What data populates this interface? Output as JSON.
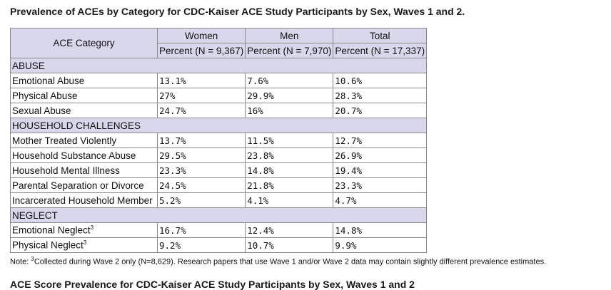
{
  "title": "Prevalence of ACEs by Category for CDC-Kaiser ACE Study Participants by Sex, Waves 1 and 2.",
  "table": {
    "category_header": "ACE Category",
    "groups": [
      {
        "name": "Women",
        "sub": "Percent (N = 9,367)"
      },
      {
        "name": "Men",
        "sub": "Percent (N = 7,970)"
      },
      {
        "name": "Total",
        "sub": "Percent (N = 17,337)"
      }
    ],
    "sections": [
      {
        "name": "ABUSE",
        "rows": [
          {
            "label": "Emotional Abuse",
            "sup": "",
            "values": [
              "13.1%",
              "7.6%",
              "10.6%"
            ]
          },
          {
            "label": "Physical Abuse",
            "sup": "",
            "values": [
              "27%",
              "29.9%",
              "28.3%"
            ]
          },
          {
            "label": "Sexual Abuse",
            "sup": "",
            "values": [
              "24.7%",
              "16%",
              "20.7%"
            ]
          }
        ]
      },
      {
        "name": "HOUSEHOLD CHALLENGES",
        "rows": [
          {
            "label": "Mother Treated Violently",
            "sup": "",
            "values": [
              "13.7%",
              "11.5%",
              "12.7%"
            ]
          },
          {
            "label": "Household Substance Abuse",
            "sup": "",
            "values": [
              "29.5%",
              "23.8%",
              "26.9%"
            ]
          },
          {
            "label": "Household Mental Illness",
            "sup": "",
            "values": [
              "23.3%",
              "14.8%",
              "19.4%"
            ]
          },
          {
            "label": "Parental Separation or Divorce",
            "sup": "",
            "values": [
              "24.5%",
              "21.8%",
              "23.3%"
            ]
          },
          {
            "label": "Incarcerated Household Member",
            "sup": "",
            "values": [
              "5.2%",
              "4.1%",
              "4.7%"
            ]
          }
        ]
      },
      {
        "name": "NEGLECT",
        "rows": [
          {
            "label": "Emotional Neglect",
            "sup": "3",
            "values": [
              "16.7%",
              "12.4%",
              "14.8%"
            ]
          },
          {
            "label": "Physical Neglect",
            "sup": "3",
            "values": [
              "9.2%",
              "10.7%",
              "9.9%"
            ]
          }
        ]
      }
    ]
  },
  "note": {
    "prefix": "Note: ",
    "sup": "3",
    "text": "Collected during Wave 2 only (N=8,629). Research papers that use Wave 1 and/or Wave 2 data may contain slightly different prevalence estimates."
  },
  "next_title": "ACE Score Prevalence for CDC-Kaiser ACE Study Participants by Sex, Waves 1 and 2"
}
